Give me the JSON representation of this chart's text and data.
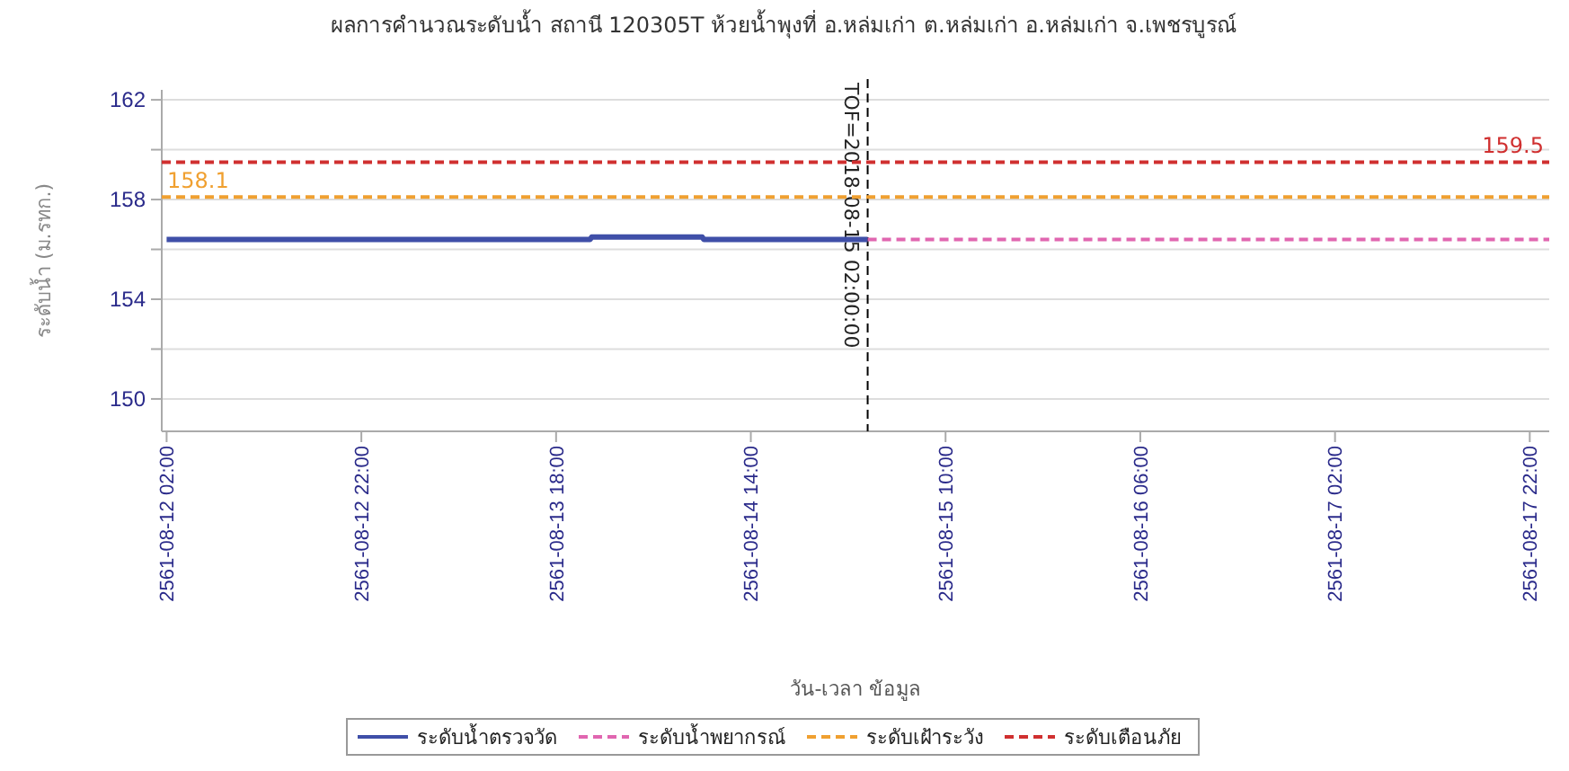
{
  "chart_data": {
    "type": "line",
    "title": "ผลการคำนวณระดับน้ำ สถานี 120305T ห้วยน้ำพุงที่ อ.หล่มเก่า ต.หล่มเก่า อ.หล่มเก่า จ.เพชรบูรณ์",
    "xlabel": "วัน-เวลา ข้อมูล",
    "ylabel": "ระดับน้ำ (ม.รทก.)",
    "xlim": [
      "2561-08-12T01:30",
      "2561-08-18T00:00"
    ],
    "xticks": [
      {
        "value": "2561-08-12T02:00",
        "label": "2561-08-12 02:00"
      },
      {
        "value": "2561-08-12T22:00",
        "label": "2561-08-12 22:00"
      },
      {
        "value": "2561-08-13T18:00",
        "label": "2561-08-13 18:00"
      },
      {
        "value": "2561-08-14T14:00",
        "label": "2561-08-14 14:00"
      },
      {
        "value": "2561-08-15T10:00",
        "label": "2561-08-15 10:00"
      },
      {
        "value": "2561-08-16T06:00",
        "label": "2561-08-16 06:00"
      },
      {
        "value": "2561-08-17T02:00",
        "label": "2561-08-17 02:00"
      },
      {
        "value": "2561-08-17T22:00",
        "label": "2561-08-17 22:00"
      }
    ],
    "ylim": [
      148.7,
      162.4
    ],
    "yticks": [
      150,
      {
        "value": 152,
        "label": null
      },
      154,
      {
        "value": 156,
        "label": null
      },
      158,
      {
        "value": 160,
        "label": null
      },
      162
    ],
    "grid": "y",
    "legend": "bottom",
    "series": [
      {
        "name": "ระดับน้ำตรวจวัด",
        "color": "#3f4fa8",
        "line_style": "solid",
        "x": [
          "2561-08-12T02:00",
          "2561-08-13T21:30",
          "2561-08-13T21:40",
          "2561-08-14T09:00",
          "2561-08-14T09:10",
          "2561-08-15T02:00"
        ],
        "values": [
          156.4,
          156.4,
          156.5,
          156.5,
          156.4,
          156.4
        ]
      },
      {
        "name": "ระดับน้ำพยากรณ์",
        "color": "#e066b0",
        "line_style": "dashed",
        "x": [
          "2561-08-15T02:00",
          "2561-08-18T00:00"
        ],
        "values": [
          156.4,
          156.4
        ]
      },
      {
        "name": "ระดับเฝ้าระวัง",
        "color": "#f0a030",
        "line_style": "dashed",
        "x": [
          "2561-08-12T01:30",
          "2561-08-18T00:00"
        ],
        "values": [
          158.1,
          158.1
        ],
        "value_labels": [
          "158.1",
          null
        ]
      },
      {
        "name": "ระดับเตือนภัย",
        "color": "#d03030",
        "line_style": "dashed",
        "x": [
          "2561-08-12T01:30",
          "2561-08-18T00:00"
        ],
        "values": [
          159.5,
          159.5
        ],
        "value_labels": [
          null,
          "159.5"
        ]
      }
    ],
    "ref_lines": [
      {
        "axis": "x",
        "value": "2561-08-15T02:00",
        "label": "TOF=2018-08-15 02:00:00",
        "color": "#000000",
        "line_style": "dashed"
      }
    ]
  }
}
